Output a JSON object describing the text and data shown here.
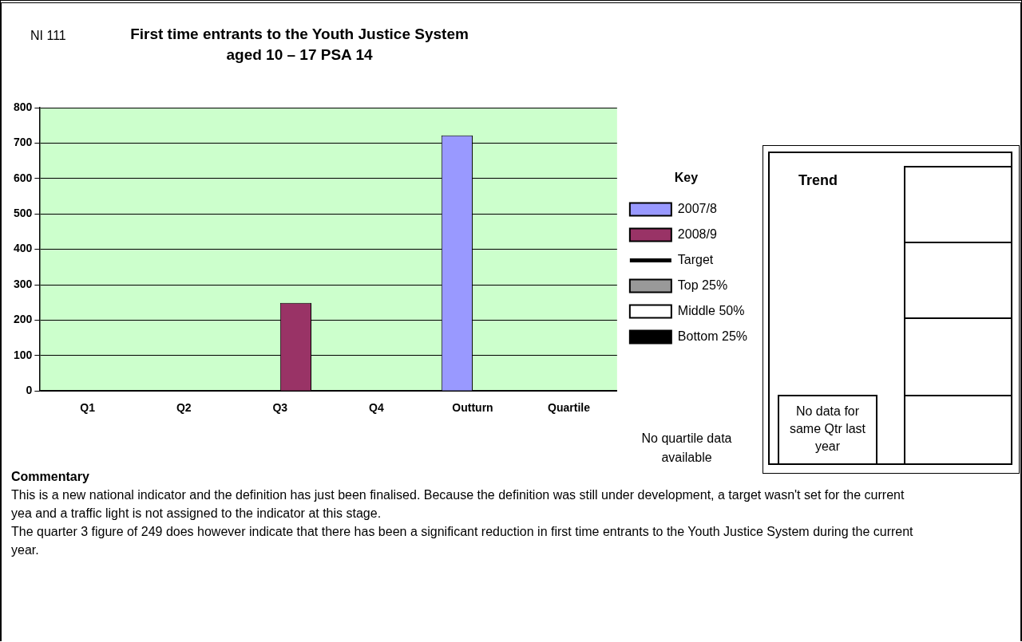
{
  "chart_data": {
    "type": "bar",
    "title": "First time entrants to the Youth Justice System aged 10 – 17 PSA 14",
    "categories": [
      "Q1",
      "Q2",
      "Q3",
      "Q4",
      "Outturn",
      "Quartile"
    ],
    "series": [
      {
        "name": "2007/8",
        "color": "#9999ff",
        "values": [
          null,
          null,
          null,
          null,
          722,
          null
        ]
      },
      {
        "name": "2008/9",
        "color": "#993366",
        "values": [
          null,
          null,
          249,
          null,
          null,
          null
        ]
      },
      {
        "name": "Target",
        "type": "line",
        "color": "#000000",
        "values": [
          null,
          null,
          null,
          null,
          null,
          null
        ]
      },
      {
        "name": "Top 25%",
        "color": "#999999",
        "values": [
          null,
          null,
          null,
          null,
          null,
          null
        ]
      },
      {
        "name": "Middle 50%",
        "color": "#ffffff",
        "values": [
          null,
          null,
          null,
          null,
          null,
          null
        ]
      },
      {
        "name": "Bottom 25%",
        "color": "#000000",
        "values": [
          null,
          null,
          null,
          null,
          null,
          null
        ]
      }
    ],
    "ylim": [
      0,
      800
    ],
    "yticks": [
      0,
      100,
      200,
      300,
      400,
      500,
      600,
      700,
      800
    ],
    "grid": "y",
    "legend": "right",
    "legend_title": "Key",
    "annotations": [
      "NI 111",
      "No quartile data available",
      "Trend",
      "No data for same Qtr last year",
      "Commentary",
      "This is a new national indicator and the definition has just been finalised. Because the definition was still under development, a target wasn't set for the current yea and a traffic light is not assigned to the indicator at this stage.",
      "The quarter 3 figure of 249 does however indicate that there has been a significant reduction in first time entrants to the Youth Justice System during the current year."
    ]
  }
}
